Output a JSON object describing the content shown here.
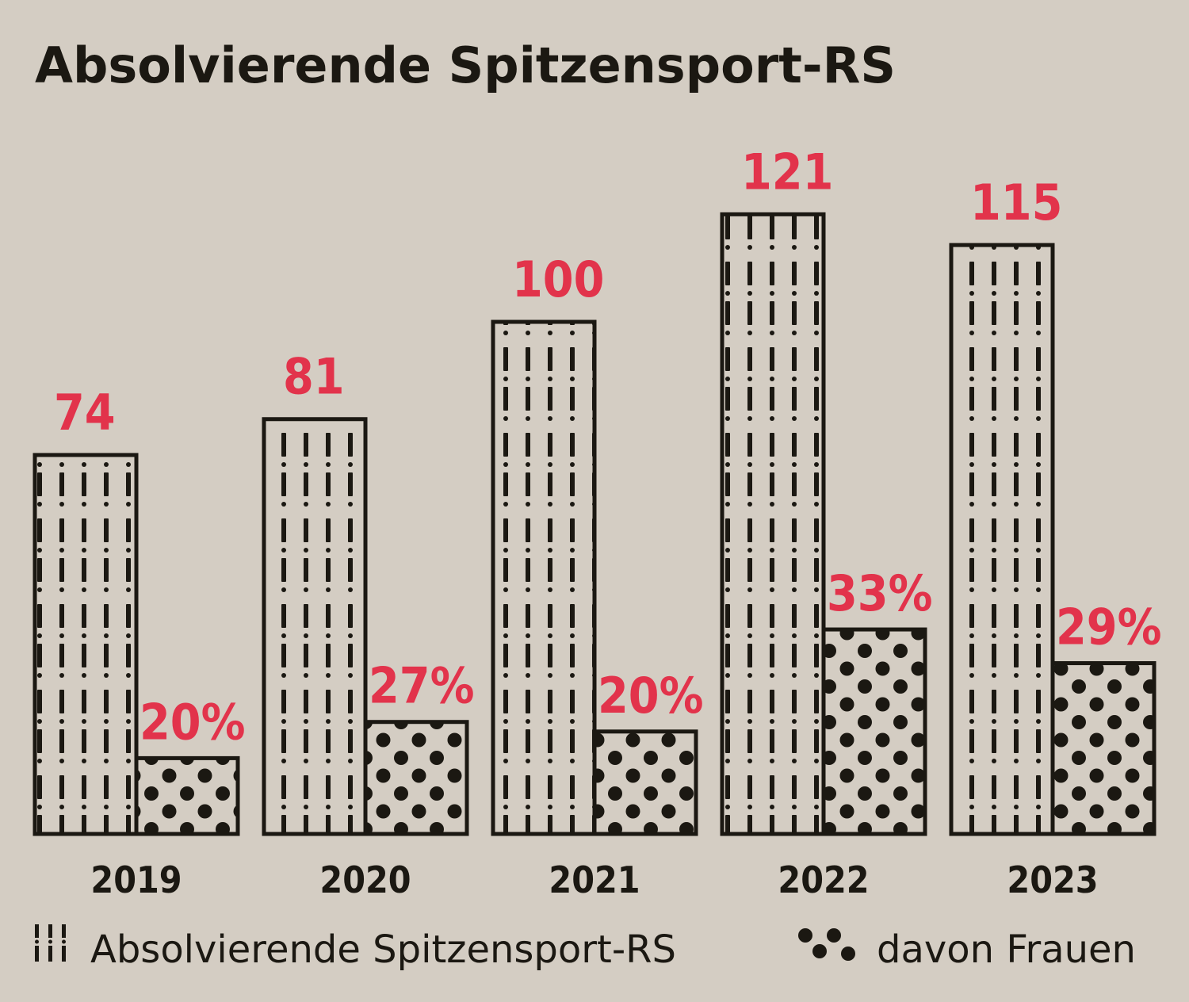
{
  "chart_data": {
    "type": "bar",
    "title": "Absolvierende Spitzensport-RS",
    "categories": [
      "2019",
      "2020",
      "2021",
      "2022",
      "2023"
    ],
    "series": [
      {
        "name": "Absolvierende Spitzensport-RS",
        "values": [
          74,
          81,
          100,
          121,
          115
        ],
        "labels": [
          "74",
          "81",
          "100",
          "121",
          "115"
        ],
        "pattern": "dashed-vertical-lines"
      },
      {
        "name": "davon Frauen",
        "values_percent": [
          20,
          27,
          20,
          33,
          29
        ],
        "labels": [
          "20%",
          "27%",
          "20%",
          "33%",
          "29%"
        ],
        "pattern": "dots"
      }
    ],
    "ylim": [
      0,
      130
    ],
    "grid": false,
    "legend_position": "bottom"
  },
  "colors": {
    "background": "#d4cdc3",
    "ink": "#1b1812",
    "accent": "#e2334b"
  },
  "legend": {
    "total_label": "Absolvierende Spitzensport-RS",
    "women_label": "davon Frauen"
  }
}
